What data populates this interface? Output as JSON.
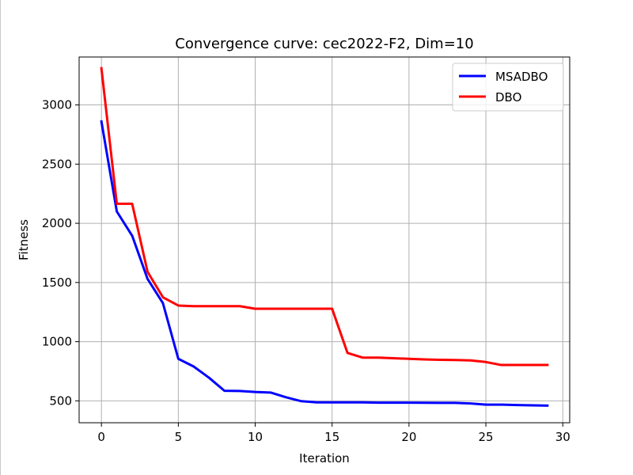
{
  "chart_data": {
    "type": "line",
    "title": "Convergence curve:  cec2022-F2, Dim=10",
    "xlabel": "Iteration",
    "ylabel": "Fitness",
    "xlim": [
      -1.45,
      30.45
    ],
    "ylim": [
      315,
      3405
    ],
    "xticks": [
      0,
      5,
      10,
      15,
      20,
      25,
      30
    ],
    "yticks": [
      500,
      1000,
      1500,
      2000,
      2500,
      3000
    ],
    "xtick_labels": [
      "0",
      "5",
      "10",
      "15",
      "20",
      "25",
      "30"
    ],
    "ytick_labels": [
      "500",
      "1000",
      "1500",
      "2000",
      "2500",
      "3000"
    ],
    "grid": true,
    "legend_position": "top-right",
    "x": [
      0,
      1,
      2,
      3,
      4,
      5,
      6,
      7,
      8,
      9,
      10,
      11,
      12,
      13,
      14,
      15,
      16,
      17,
      18,
      19,
      20,
      21,
      22,
      23,
      24,
      25,
      26,
      27,
      28,
      29
    ],
    "series": [
      {
        "name": "MSADBO",
        "color": "#0000ff",
        "values": [
          2860,
          2100,
          1895,
          1530,
          1325,
          855,
          790,
          695,
          585,
          583,
          575,
          570,
          530,
          497,
          487,
          487,
          487,
          487,
          485,
          485,
          485,
          484,
          483,
          483,
          478,
          468,
          468,
          465,
          462,
          460
        ]
      },
      {
        "name": "DBO",
        "color": "#ff0000",
        "values": [
          3310,
          2165,
          2165,
          1590,
          1375,
          1305,
          1300,
          1300,
          1300,
          1300,
          1278,
          1278,
          1278,
          1278,
          1278,
          1278,
          905,
          865,
          865,
          860,
          855,
          850,
          847,
          845,
          842,
          828,
          803,
          803,
          803,
          803
        ]
      }
    ]
  }
}
